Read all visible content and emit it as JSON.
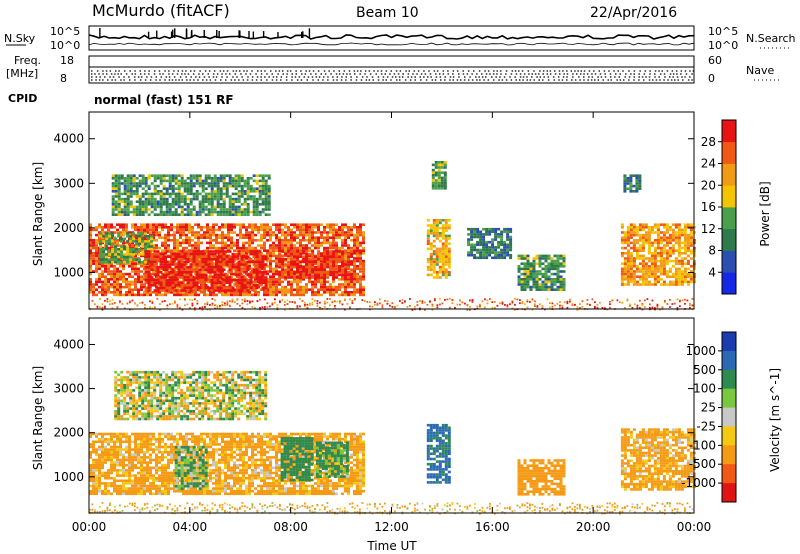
{
  "header": {
    "station": "McMurdo (fitACF)",
    "beam": "Beam 10",
    "date": "22/Apr/2016"
  },
  "noise_panel": {
    "left_label": "N.Sky",
    "right_label": "N.Search",
    "tick_top": "10^5",
    "tick_bottom": "10^0",
    "right_tick_top": "10^5",
    "right_tick_bottom": "10^0"
  },
  "freq_panel": {
    "left_label_1": "Freq.",
    "left_label_2": "[MHz]",
    "right_label": "Nave",
    "tick_top": "18",
    "tick_bottom": "8",
    "right_tick_top": "60",
    "right_tick_bottom": "0"
  },
  "cpid_panel": {
    "label": "CPID",
    "value": "normal (fast) 151 RF"
  },
  "colors": {
    "power_scale": [
      "#1428e6",
      "#2a4fb0",
      "#2f7a4a",
      "#4aa04a",
      "#f4c400",
      "#f19b14",
      "#f05a14",
      "#e81414"
    ],
    "velocity_scale": [
      "#1a3cb0",
      "#2a6ab4",
      "#2f8a50",
      "#7ac840",
      "#c8c8c8",
      "#f5c814",
      "#f59a14",
      "#f05a14",
      "#e01414"
    ]
  },
  "chart_data": [
    {
      "type": "heatmap",
      "title": "",
      "ylabel": "Slant Range [km]",
      "xlabel": "",
      "ylim": [
        180,
        4600
      ],
      "yticks": [
        "1000",
        "2000",
        "3000",
        "4000"
      ],
      "colorbar_label": "Power [dB]",
      "colorbar_ticks": [
        "4",
        "8",
        "12",
        "16",
        "20",
        "24",
        "28"
      ],
      "colorbar_range": [
        0,
        32
      ],
      "blobs": [
        {
          "t0": 0.0,
          "t1": 10.9,
          "r0": 500,
          "r1": 2100,
          "value": 26
        },
        {
          "t0": 0.4,
          "t1": 2.5,
          "r0": 1200,
          "r1": 1900,
          "value": 14
        },
        {
          "t0": 2.2,
          "t1": 7.0,
          "r0": 600,
          "r1": 1500,
          "value": 30
        },
        {
          "t0": 7.5,
          "t1": 10.4,
          "r0": 900,
          "r1": 1500,
          "value": 29
        },
        {
          "t0": 0.9,
          "t1": 7.2,
          "r0": 2300,
          "r1": 3200,
          "value": 12
        },
        {
          "t0": 13.4,
          "t1": 14.3,
          "r0": 900,
          "r1": 2200,
          "value": 20
        },
        {
          "t0": 13.6,
          "t1": 14.1,
          "r0": 2900,
          "r1": 3500,
          "value": 13
        },
        {
          "t0": 15.0,
          "t1": 16.7,
          "r0": 1300,
          "r1": 2000,
          "value": 9
        },
        {
          "t0": 17.0,
          "t1": 18.9,
          "r0": 600,
          "r1": 1400,
          "value": 12
        },
        {
          "t0": 21.1,
          "t1": 24.0,
          "r0": 700,
          "r1": 2100,
          "value": 22
        },
        {
          "t0": 21.2,
          "t1": 21.8,
          "r0": 2800,
          "r1": 3200,
          "value": 10
        }
      ]
    },
    {
      "type": "heatmap",
      "title": "",
      "ylabel": "Slant Range [km]",
      "xlabel": "Time UT",
      "ylim": [
        180,
        4600
      ],
      "yticks": [
        "1000",
        "2000",
        "3000",
        "4000"
      ],
      "xticks": [
        "00:00",
        "04:00",
        "08:00",
        "12:00",
        "16:00",
        "20:00",
        "00:00"
      ],
      "xlim": [
        0,
        24
      ],
      "colorbar_label": "Velocity [m s^-1]",
      "colorbar_ticks": [
        "1000",
        "500",
        "100",
        "25",
        "-25",
        "-100",
        "-500",
        "-1000"
      ],
      "blobs": [
        {
          "t0": 0.0,
          "t1": 10.9,
          "r0": 600,
          "r1": 2000,
          "value": -200
        },
        {
          "t0": 3.4,
          "t1": 4.7,
          "r0": 700,
          "r1": 1700,
          "value": 150
        },
        {
          "t0": 7.6,
          "t1": 8.8,
          "r0": 900,
          "r1": 1900,
          "value": 300
        },
        {
          "t0": 9.0,
          "t1": 10.3,
          "r0": 1000,
          "r1": 1800,
          "value": 200
        },
        {
          "t0": 13.4,
          "t1": 14.3,
          "r0": 900,
          "r1": 2200,
          "value": 600
        },
        {
          "t0": 17.0,
          "t1": 18.9,
          "r0": 600,
          "r1": 1400,
          "value": -300
        },
        {
          "t0": 21.1,
          "t1": 24.0,
          "r0": 700,
          "r1": 2100,
          "value": -200
        },
        {
          "t0": 1.0,
          "t1": 7.0,
          "r0": 2300,
          "r1": 3400,
          "value": 0
        }
      ]
    }
  ]
}
